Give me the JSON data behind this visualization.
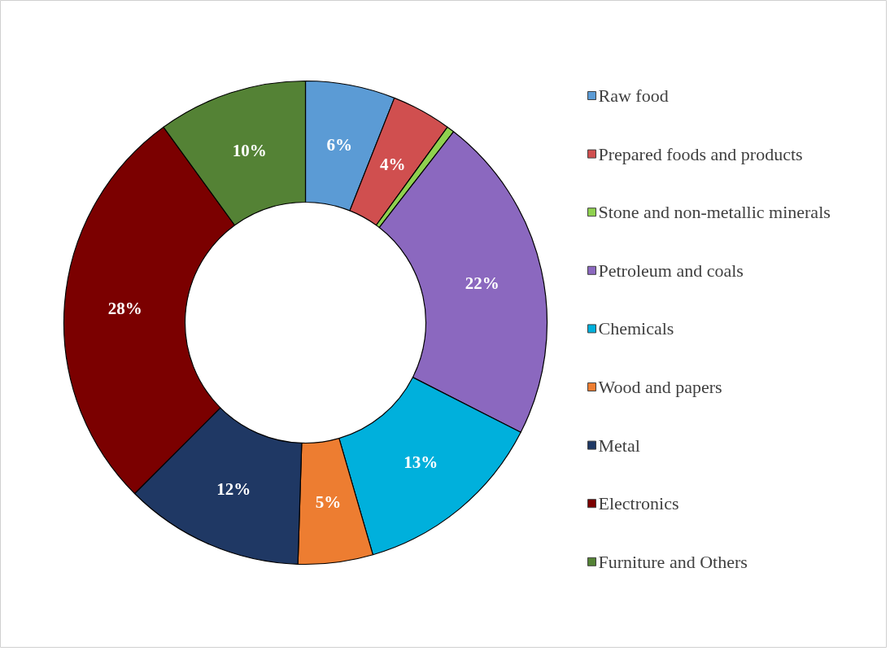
{
  "chart_data": {
    "type": "donut",
    "categories": [
      "Raw food",
      "Prepared foods and products",
      "Stone and non-metallic minerals",
      "Petroleum and coals",
      "Chemicals",
      "Wood and papers",
      "Metal",
      "Electronics",
      "Furniture and Others"
    ],
    "values": [
      6,
      4,
      0.5,
      22,
      13,
      5,
      12,
      27.5,
      10
    ],
    "value_labels": [
      "6%",
      "4%",
      null,
      "22%",
      "13%",
      "5%",
      "12%",
      "28%",
      "10%"
    ],
    "colors": [
      "#5b9bd5",
      "#d04f4f",
      "#8fd14f",
      "#8b68bf",
      "#00b0dc",
      "#ed7d31",
      "#1f3864",
      "#7b0000",
      "#548235"
    ],
    "legend": "right"
  }
}
